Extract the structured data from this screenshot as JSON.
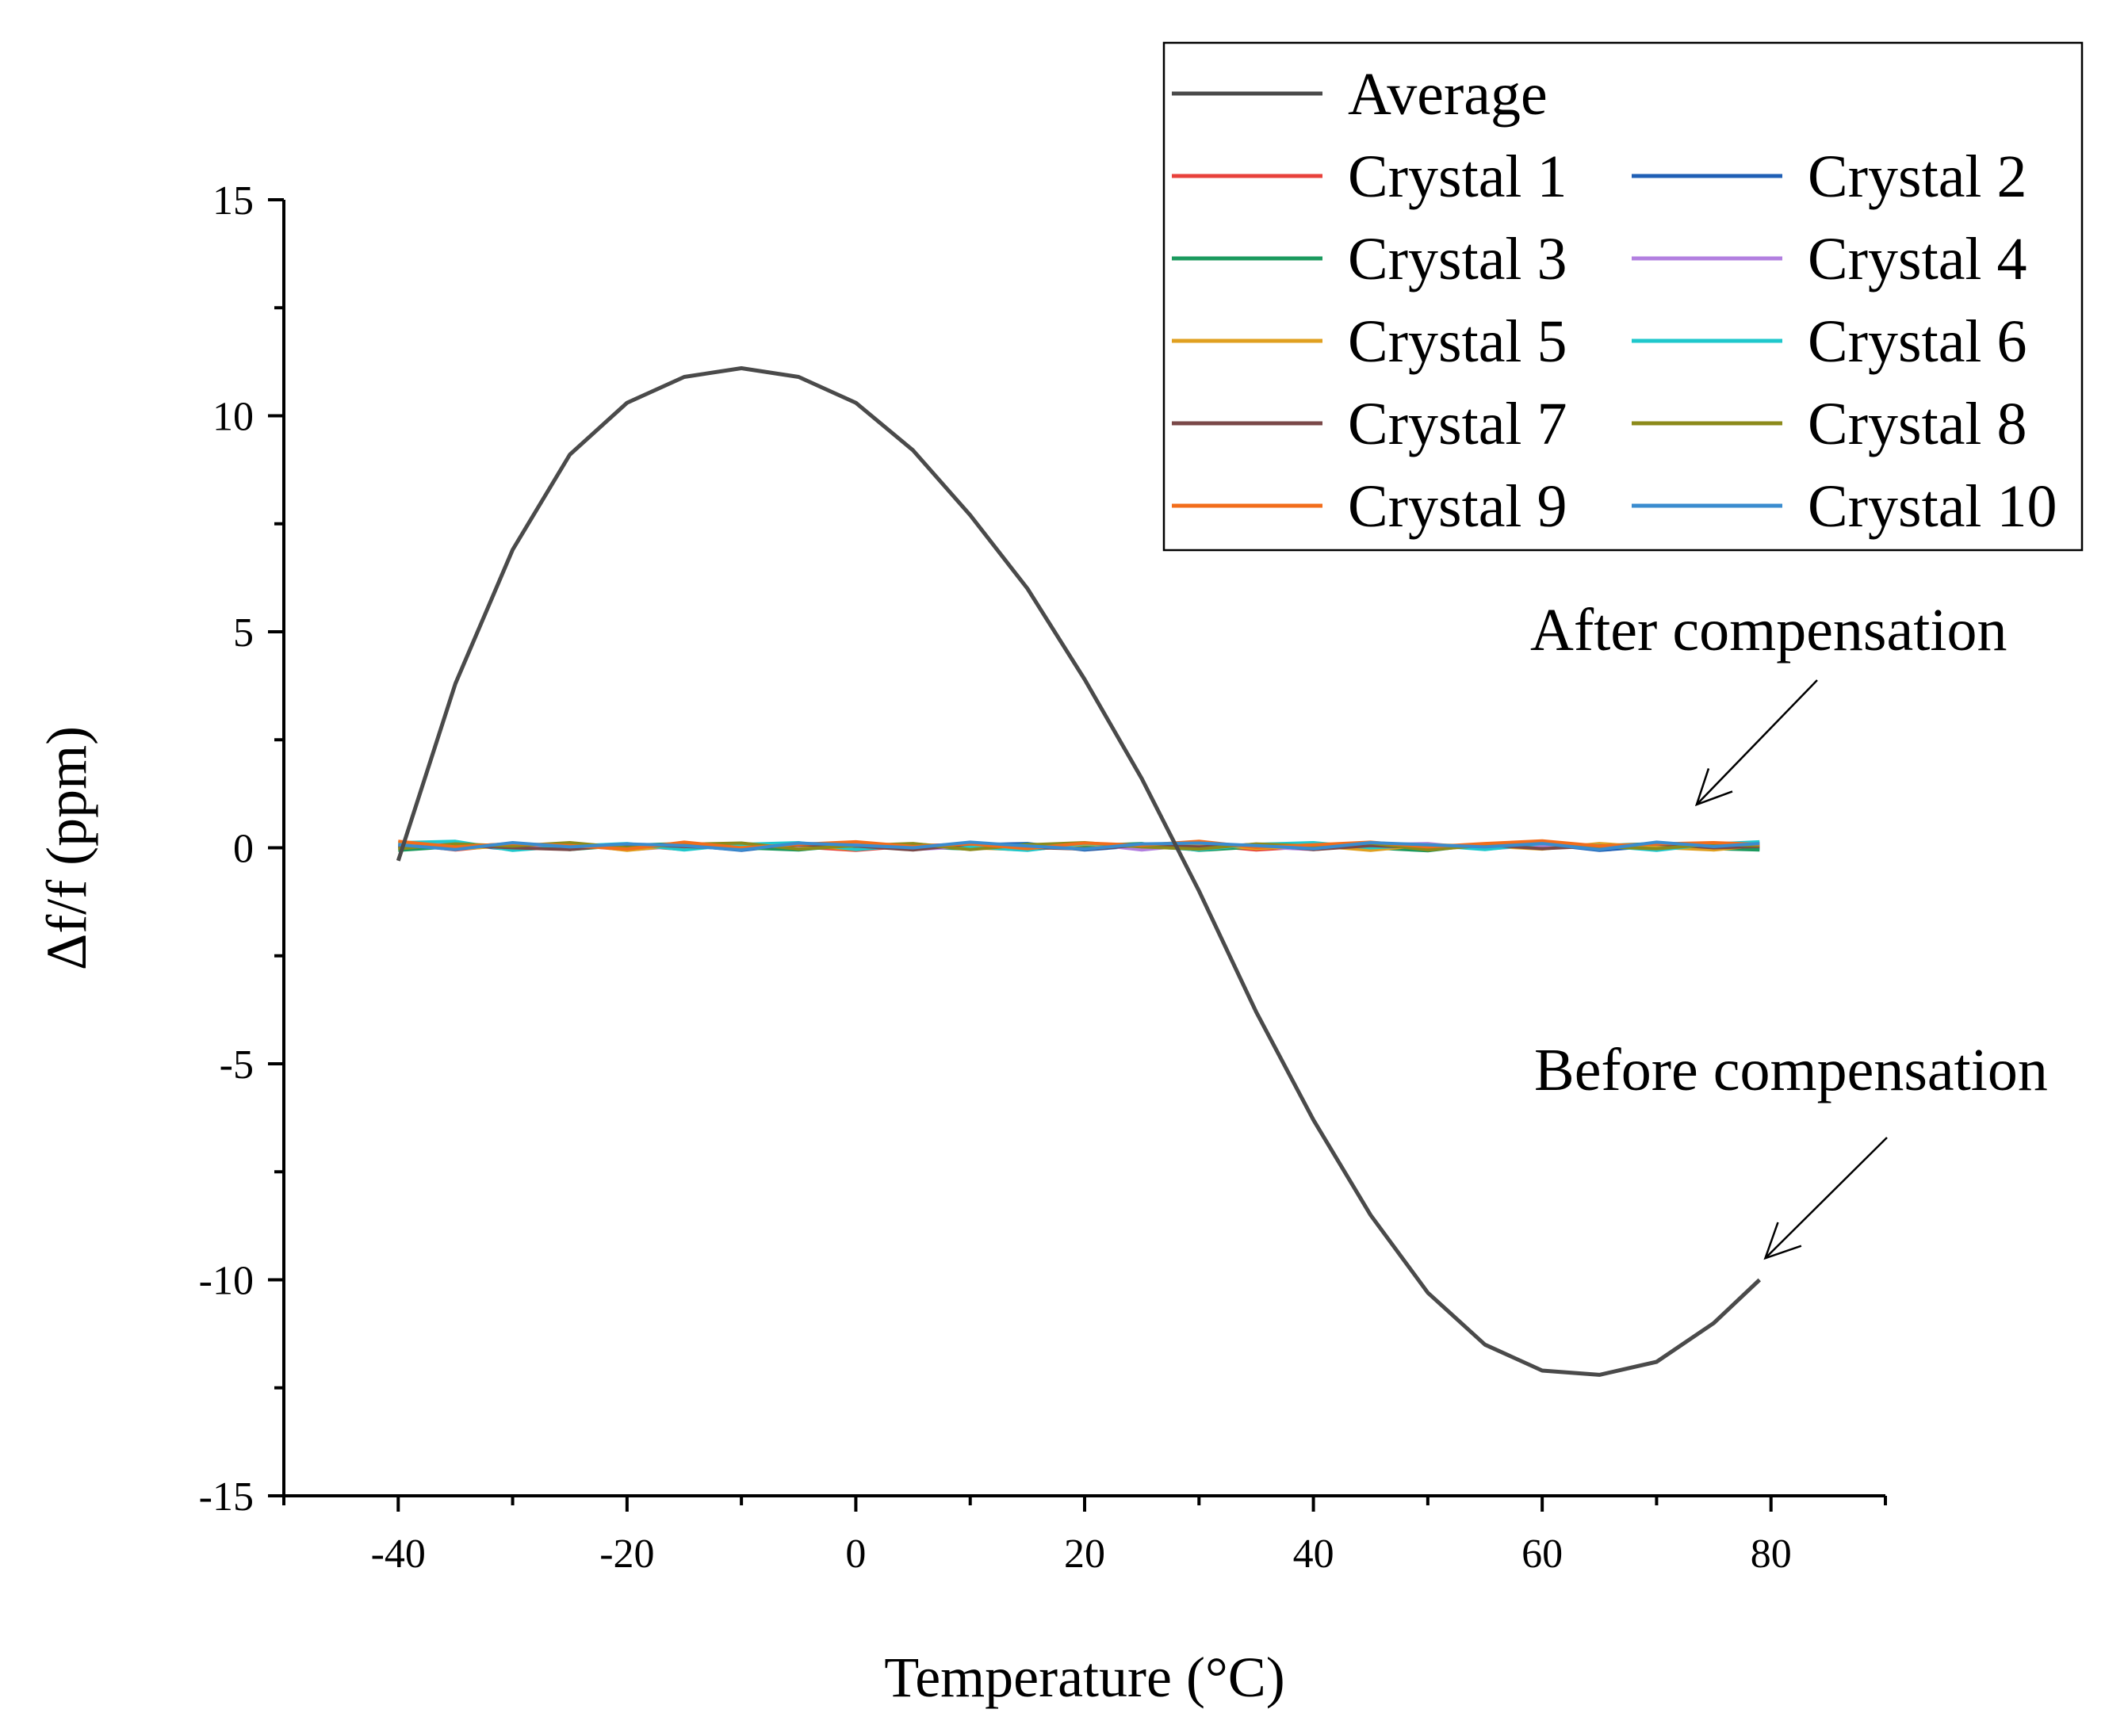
{
  "chart_data": {
    "type": "line",
    "xlabel": "Temperature (°C)",
    "ylabel": "Δf/f (ppm)",
    "xlim": [
      -50,
      90
    ],
    "ylim": [
      -15,
      15
    ],
    "x_ticks": [
      -40,
      -20,
      0,
      20,
      40,
      60,
      80
    ],
    "y_ticks": [
      -15,
      -10,
      -5,
      0,
      5,
      10,
      15
    ],
    "x_tick_labels": [
      "-40",
      "-20",
      "0",
      "20",
      "40",
      "60",
      "80"
    ],
    "y_tick_labels": [
      "-15",
      "-10",
      "-5",
      "0",
      "5",
      "10",
      "15"
    ],
    "grid": false,
    "legend": {
      "placement": "top-right",
      "columns": 2
    },
    "x": [
      -40,
      -35,
      -30,
      -25,
      -20,
      -15,
      -10,
      -5,
      0,
      5,
      10,
      15,
      20,
      25,
      30,
      35,
      40,
      45,
      50,
      55,
      60,
      65,
      70,
      75,
      79
    ],
    "series": [
      {
        "name": "Average",
        "color": "#4a4a4a",
        "values": [
          -0.3,
          3.8,
          6.9,
          9.1,
          10.3,
          10.9,
          11.1,
          10.9,
          10.3,
          9.2,
          7.7,
          6.0,
          3.9,
          1.6,
          -1.0,
          -3.8,
          -6.3,
          -8.5,
          -10.3,
          -11.5,
          -12.1,
          -12.2,
          -11.9,
          -11.0,
          -10.0
        ]
      },
      {
        "name": "Crystal 1",
        "color": "#e8413b",
        "values": [
          0.1,
          -0.05,
          0.08,
          0.0,
          0.06,
          -0.04,
          0.1,
          0.02,
          -0.06,
          0.05,
          0.08,
          -0.03,
          0.04,
          0.0,
          0.07,
          -0.05,
          0.03,
          0.09,
          -0.02,
          0.05,
          0.0,
          0.06,
          -0.04,
          0.08,
          0.1
        ]
      },
      {
        "name": "Crystal 2",
        "color": "#1f5fb5",
        "values": [
          0.0,
          0.08,
          -0.04,
          0.1,
          0.02,
          0.06,
          -0.06,
          0.09,
          0.03,
          -0.02,
          0.07,
          0.1,
          -0.05,
          0.05,
          0.0,
          0.08,
          0.1,
          -0.03,
          0.06,
          0.02,
          0.09,
          -0.06,
          0.04,
          0.07,
          -0.02
        ]
      },
      {
        "name": "Crystal 3",
        "color": "#1b9a5e",
        "values": [
          -0.06,
          0.03,
          0.09,
          -0.04,
          0.06,
          0.1,
          0.0,
          -0.05,
          0.07,
          0.02,
          -0.03,
          0.08,
          0.05,
          0.1,
          -0.06,
          0.02,
          0.06,
          0.0,
          -0.07,
          0.09,
          0.03,
          0.05,
          0.1,
          -0.02,
          -0.05
        ]
      },
      {
        "name": "Crystal 4",
        "color": "#b27fe0",
        "values": [
          0.05,
          0.1,
          -0.02,
          0.07,
          -0.05,
          0.04,
          0.09,
          0.0,
          0.11,
          -0.04,
          0.03,
          0.06,
          0.1,
          -0.05,
          0.08,
          0.02,
          -0.04,
          0.07,
          0.1,
          -0.03,
          0.06,
          0.02,
          0.08,
          0.11,
          0.04
        ]
      },
      {
        "name": "Crystal 5",
        "color": "#e0a020",
        "values": [
          0.08,
          -0.03,
          0.05,
          0.1,
          -0.06,
          0.07,
          0.02,
          0.06,
          -0.04,
          0.09,
          0.0,
          -0.05,
          0.08,
          0.03,
          0.1,
          -0.02,
          0.05,
          -0.06,
          0.07,
          0.04,
          -0.03,
          0.1,
          0.01,
          -0.05,
          0.06
        ]
      },
      {
        "name": "Crystal 6",
        "color": "#1fc8cc",
        "values": [
          0.12,
          0.15,
          -0.06,
          0.04,
          0.1,
          -0.05,
          0.08,
          0.12,
          -0.04,
          0.06,
          0.02,
          -0.06,
          0.1,
          0.04,
          -0.05,
          0.08,
          0.12,
          0.0,
          0.06,
          -0.04,
          0.1,
          0.05,
          -0.06,
          0.09,
          0.14
        ]
      },
      {
        "name": "Crystal 7",
        "color": "#7a4848",
        "values": [
          0.02,
          0.06,
          0.0,
          -0.04,
          0.08,
          0.03,
          -0.02,
          0.07,
          0.04,
          -0.05,
          0.09,
          0.01,
          -0.03,
          0.06,
          0.02,
          0.08,
          -0.04,
          0.05,
          0.0,
          0.07,
          -0.02,
          0.04,
          0.09,
          0.0,
          0.03
        ]
      },
      {
        "name": "Crystal 8",
        "color": "#8c8a1a",
        "values": [
          -0.02,
          0.09,
          0.04,
          0.12,
          0.0,
          0.08,
          0.11,
          -0.03,
          0.05,
          0.1,
          -0.04,
          0.07,
          0.12,
          0.02,
          -0.03,
          0.09,
          0.04,
          0.11,
          -0.05,
          0.06,
          0.1,
          0.03,
          -0.02,
          0.08,
          0.05
        ]
      },
      {
        "name": "Crystal 9",
        "color": "#f26d1b",
        "values": [
          0.15,
          0.02,
          0.1,
          0.05,
          -0.03,
          0.13,
          0.0,
          0.08,
          0.14,
          0.03,
          0.09,
          -0.02,
          0.11,
          0.06,
          0.15,
          0.01,
          0.07,
          0.13,
          0.02,
          0.1,
          0.16,
          0.04,
          0.09,
          0.12,
          0.08
        ]
      },
      {
        "name": "Crystal 10",
        "color": "#3a8ccf",
        "values": [
          0.07,
          -0.04,
          0.12,
          0.02,
          0.09,
          0.05,
          -0.05,
          0.11,
          0.06,
          0.0,
          0.13,
          0.04,
          -0.03,
          0.09,
          0.11,
          0.05,
          -0.02,
          0.12,
          0.07,
          0.02,
          0.1,
          -0.04,
          0.13,
          0.03,
          0.1
        ]
      }
    ],
    "annotations": [
      {
        "text": "After compensation",
        "arrow_to": [
          73.5,
          1.0
        ]
      },
      {
        "text": "Before compensation",
        "arrow_to": [
          79.5,
          -9.5
        ]
      }
    ]
  }
}
